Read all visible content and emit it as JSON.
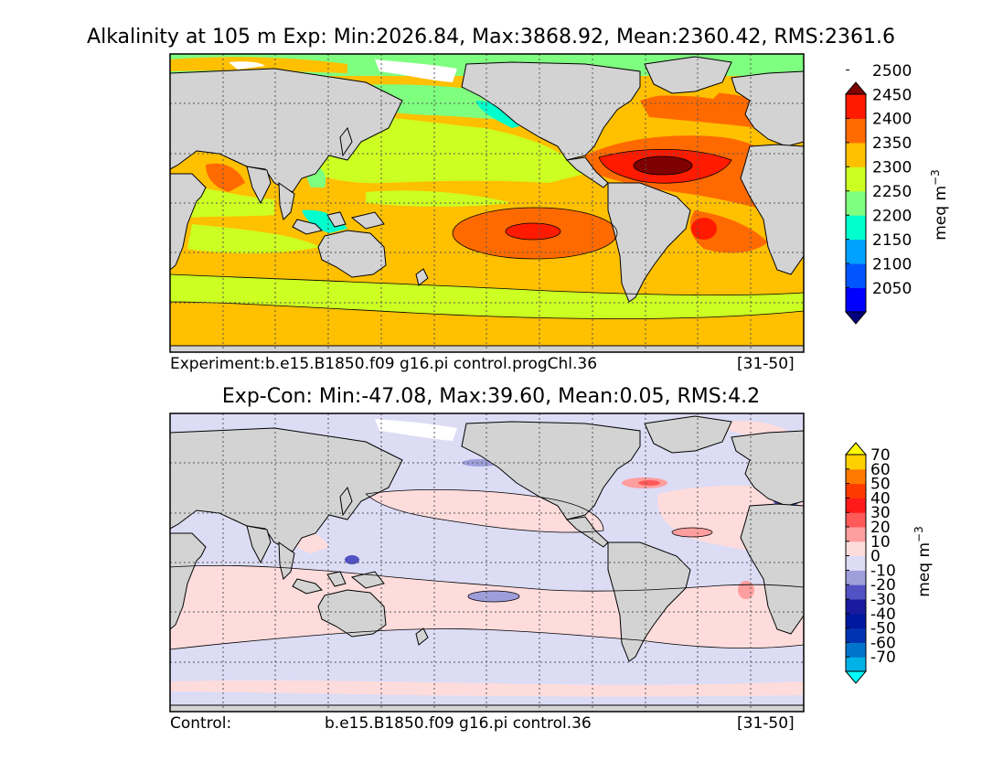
{
  "panels": [
    {
      "title": "Alkalinity at 105 m Exp: Min:2026.84, Max:3868.92, Mean:2360.42, RMS:2361.6",
      "caption_left": "Experiment:b.e15.B1850.f09 g16.pi control.progChl.36",
      "caption_right": "[31-50]",
      "colorbar": {
        "label": "meq m",
        "label_sup": "−3",
        "ticks": [
          "2050",
          "2100",
          "2150",
          "2200",
          "2250",
          "2300",
          "2350",
          "2400",
          "2450",
          "2500"
        ],
        "colors": [
          "#00007f",
          "#0000ff",
          "#0055ff",
          "#00a2ff",
          "#00ffcc",
          "#7fff7f",
          "#ccff22",
          "#ffc000",
          "#ff6a00",
          "#ff1a00",
          "#7f0000"
        ]
      }
    },
    {
      "title": "Exp-Con: Min:-47.08, Max:39.60, Mean:0.05, RMS:4.2",
      "caption_left": "Control:",
      "caption_mid": "b.e15.B1850.f09 g16.pi control.36",
      "caption_right": "[31-50]",
      "colorbar": {
        "label": "meq m",
        "label_sup": "−3",
        "ticks": [
          "-70",
          "-60",
          "-50",
          "-40",
          "-30",
          "-20",
          "-10",
          "0",
          "10",
          "20",
          "30",
          "40",
          "50",
          "60",
          "70"
        ],
        "colors": [
          "#00ffff",
          "#00b2e6",
          "#0073cc",
          "#0033b2",
          "#00189e",
          "#1a1a9e",
          "#5252c4",
          "#9e9eda",
          "#dcdcf5",
          "#ffdcdc",
          "#ff9e9e",
          "#ff5a5a",
          "#ff1a1a",
          "#ff3a00",
          "#ff7a00",
          "#ffd000",
          "#ffff00"
        ]
      }
    }
  ]
}
